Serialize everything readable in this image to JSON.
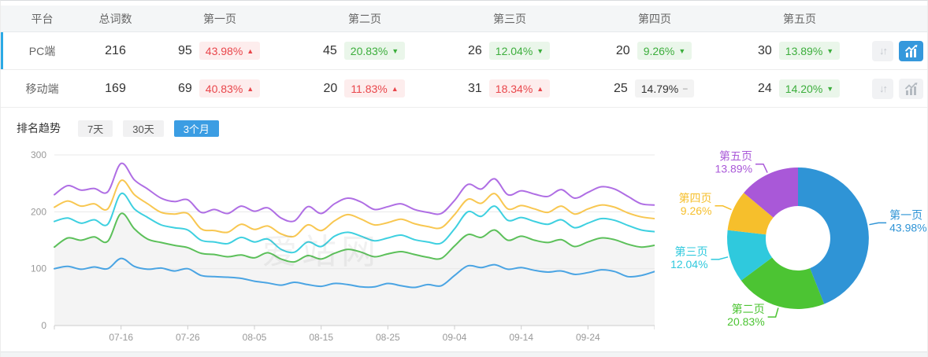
{
  "table": {
    "headers": [
      "平台",
      "总词数",
      "第一页",
      "第二页",
      "第三页",
      "第四页",
      "第五页"
    ],
    "rows": [
      {
        "platform": "PC端",
        "total": "216",
        "chart_active": true,
        "pages": [
          {
            "count": "95",
            "pct": "43.98%",
            "dir": "up"
          },
          {
            "count": "45",
            "pct": "20.83%",
            "dir": "down"
          },
          {
            "count": "26",
            "pct": "12.04%",
            "dir": "down"
          },
          {
            "count": "20",
            "pct": "9.26%",
            "dir": "down"
          },
          {
            "count": "30",
            "pct": "13.89%",
            "dir": "down"
          }
        ]
      },
      {
        "platform": "移动端",
        "total": "169",
        "chart_active": false,
        "pages": [
          {
            "count": "69",
            "pct": "40.83%",
            "dir": "up"
          },
          {
            "count": "20",
            "pct": "11.83%",
            "dir": "up"
          },
          {
            "count": "31",
            "pct": "18.34%",
            "dir": "up"
          },
          {
            "count": "25",
            "pct": "14.79%",
            "dir": "flat"
          },
          {
            "count": "24",
            "pct": "14.20%",
            "dir": "down"
          }
        ]
      }
    ]
  },
  "badge_glyphs": {
    "up": "▲",
    "down": "▼",
    "flat": "−"
  },
  "trend": {
    "label": "排名趋势",
    "tabs": [
      "7天",
      "30天",
      "3个月"
    ],
    "active_tab": "3个月"
  },
  "watermark": "爱站网",
  "colors": {
    "accent_blue": "#3b9de3",
    "active_button": "#3598dc",
    "row_accent": "#2ba9e5",
    "axis": "#cccccc",
    "grid": "#e8e8e8",
    "tick_text": "#999999",
    "area_fill": "#f4f4f4"
  },
  "chart_data": [
    {
      "type": "line",
      "title": "排名趋势（3个月）",
      "xlabel": "",
      "ylabel": "",
      "ylim": [
        0,
        300
      ],
      "y_ticks": [
        0,
        100,
        200,
        300
      ],
      "grid": true,
      "legend_position": "none",
      "x_tick_labels": [
        "07-16",
        "07-26",
        "08-05",
        "08-15",
        "08-25",
        "09-04",
        "09-14",
        "09-24"
      ],
      "x_tick_days": [
        10,
        20,
        30,
        40,
        50,
        60,
        70,
        80
      ],
      "x_day_range": [
        0,
        90
      ],
      "sample_step_days": 2,
      "area_under_series": "第二页",
      "series": [
        {
          "name": "第一页",
          "color": "#4aa4e3",
          "values": [
            100,
            104,
            99,
            103,
            100,
            118,
            104,
            99,
            101,
            96,
            100,
            88,
            86,
            85,
            83,
            78,
            75,
            71,
            76,
            72,
            69,
            74,
            72,
            68,
            68,
            74,
            70,
            67,
            72,
            70,
            88,
            105,
            102,
            107,
            99,
            102,
            97,
            94,
            96,
            90,
            93,
            98,
            95,
            86,
            88,
            95
          ]
        },
        {
          "name": "第二页",
          "color": "#5cc05a",
          "values": [
            138,
            154,
            150,
            156,
            148,
            197,
            170,
            152,
            146,
            141,
            137,
            127,
            125,
            121,
            124,
            119,
            128,
            117,
            112,
            123,
            117,
            127,
            134,
            129,
            121,
            126,
            130,
            125,
            120,
            118,
            140,
            160,
            155,
            168,
            150,
            157,
            150,
            146,
            151,
            139,
            147,
            154,
            151,
            143,
            138,
            141
          ]
        },
        {
          "name": "第三页",
          "color": "#3ed0e0",
          "values": [
            183,
            189,
            180,
            186,
            178,
            232,
            205,
            190,
            177,
            172,
            168,
            150,
            147,
            144,
            155,
            147,
            152,
            134,
            129,
            147,
            139,
            157,
            164,
            157,
            149,
            154,
            159,
            151,
            147,
            145,
            170,
            200,
            192,
            210,
            185,
            190,
            183,
            178,
            186,
            172,
            180,
            188,
            185,
            176,
            168,
            165
          ]
        },
        {
          "name": "第四页",
          "color": "#f8c751",
          "values": [
            208,
            219,
            210,
            214,
            205,
            255,
            230,
            214,
            199,
            196,
            197,
            170,
            167,
            164,
            178,
            169,
            175,
            161,
            157,
            177,
            167,
            184,
            195,
            187,
            177,
            181,
            187,
            179,
            174,
            172,
            195,
            222,
            215,
            232,
            205,
            211,
            205,
            199,
            210,
            196,
            205,
            212,
            208,
            198,
            191,
            188
          ]
        },
        {
          "name": "第五页",
          "color": "#af6ee4",
          "values": [
            230,
            246,
            238,
            241,
            235,
            285,
            256,
            240,
            224,
            218,
            221,
            199,
            204,
            197,
            210,
            201,
            207,
            189,
            184,
            209,
            197,
            214,
            224,
            217,
            204,
            209,
            214,
            204,
            199,
            197,
            220,
            248,
            240,
            258,
            230,
            237,
            231,
            227,
            239,
            224,
            234,
            244,
            240,
            227,
            214,
            212
          ]
        }
      ]
    },
    {
      "type": "pie",
      "donut": true,
      "labels": [
        "第一页",
        "第二页",
        "第三页",
        "第四页",
        "第五页"
      ],
      "values": [
        43.98,
        20.83,
        12.04,
        9.26,
        13.89
      ],
      "pct_labels": [
        "43.98%",
        "20.83%",
        "12.04%",
        "9.26%",
        "13.89%"
      ],
      "colors": [
        "#2f94d6",
        "#4cc433",
        "#2fc9dd",
        "#f6bf2c",
        "#a958d8"
      ],
      "start_angle_deg": 0,
      "direction": "clockwise",
      "legend_position": "outside-labels"
    }
  ]
}
